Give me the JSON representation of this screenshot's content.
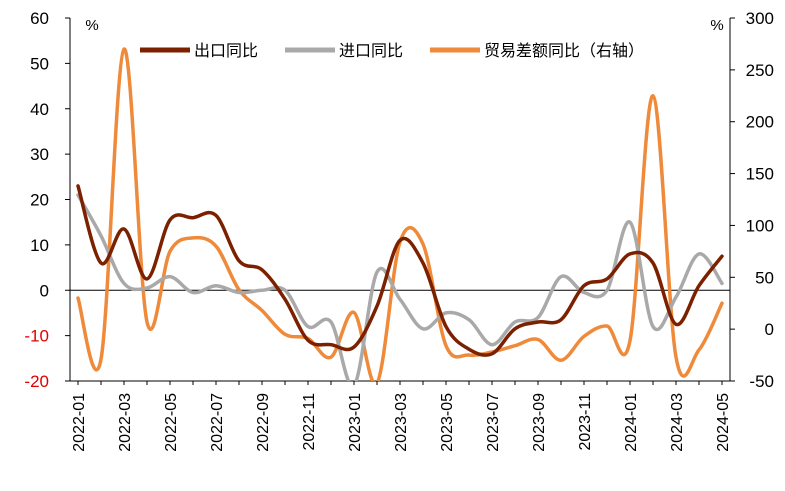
{
  "chart_data": {
    "type": "line",
    "units": {
      "left": "%",
      "right": "%"
    },
    "y_left": {
      "min": -20,
      "max": 60,
      "ticks": [
        60,
        50,
        40,
        30,
        20,
        10,
        0,
        -10,
        -20
      ],
      "negative_color": "#e00000"
    },
    "y_right": {
      "min": -50,
      "max": 300,
      "ticks": [
        300,
        250,
        200,
        150,
        100,
        50,
        0,
        -50
      ]
    },
    "x_tick_labels": [
      "2022-01",
      "2022-03",
      "2022-05",
      "2022-07",
      "2022-09",
      "2022-11",
      "2023-01",
      "2023-03",
      "2023-05",
      "2023-07",
      "2023-09",
      "2023-11",
      "2024-01",
      "2024-03",
      "2024-05"
    ],
    "x": [
      "2022-01",
      "2022-02",
      "2022-03",
      "2022-04",
      "2022-05",
      "2022-06",
      "2022-07",
      "2022-08",
      "2022-09",
      "2022-10",
      "2022-11",
      "2022-12",
      "2023-01",
      "2023-02",
      "2023-03",
      "2023-04",
      "2023-05",
      "2023-06",
      "2023-07",
      "2023-08",
      "2023-09",
      "2023-10",
      "2023-11",
      "2023-12",
      "2024-01",
      "2024-02",
      "2024-03",
      "2024-04",
      "2024-05"
    ],
    "legend_position": "top",
    "series": [
      {
        "name": "出口同比",
        "axis": "left",
        "color": "#7b2100",
        "values": [
          23,
          6,
          13.5,
          2.5,
          15.5,
          16,
          16.5,
          6.5,
          4.5,
          -2,
          -11,
          -12,
          -12.5,
          -3.5,
          11,
          6,
          -8,
          -13,
          -14,
          -8.5,
          -7,
          -6.5,
          1,
          2.5,
          8,
          6,
          -7.5,
          1,
          7.5
        ]
      },
      {
        "name": "进口同比",
        "axis": "left",
        "color": "#a9a9a9",
        "values": [
          21,
          12,
          1.5,
          0.5,
          3,
          -0.5,
          1,
          -0.5,
          0,
          0,
          -8,
          -7,
          -21,
          4,
          -2,
          -8.5,
          -5,
          -6.5,
          -12,
          -7,
          -6,
          3,
          -0.5,
          0,
          15,
          -8,
          -1.5,
          8,
          1.5
        ]
      },
      {
        "name": "贸易差额同比（右轴）",
        "axis": "right",
        "color": "#ee8a3a",
        "values": [
          30,
          -29,
          270,
          7,
          75,
          88,
          80,
          38,
          18,
          -5,
          -9,
          -27,
          16,
          -52,
          84,
          82,
          -16,
          -25,
          -22,
          -16,
          -10,
          -30,
          -7,
          3,
          -11,
          225,
          -27,
          -20,
          25
        ]
      }
    ]
  }
}
